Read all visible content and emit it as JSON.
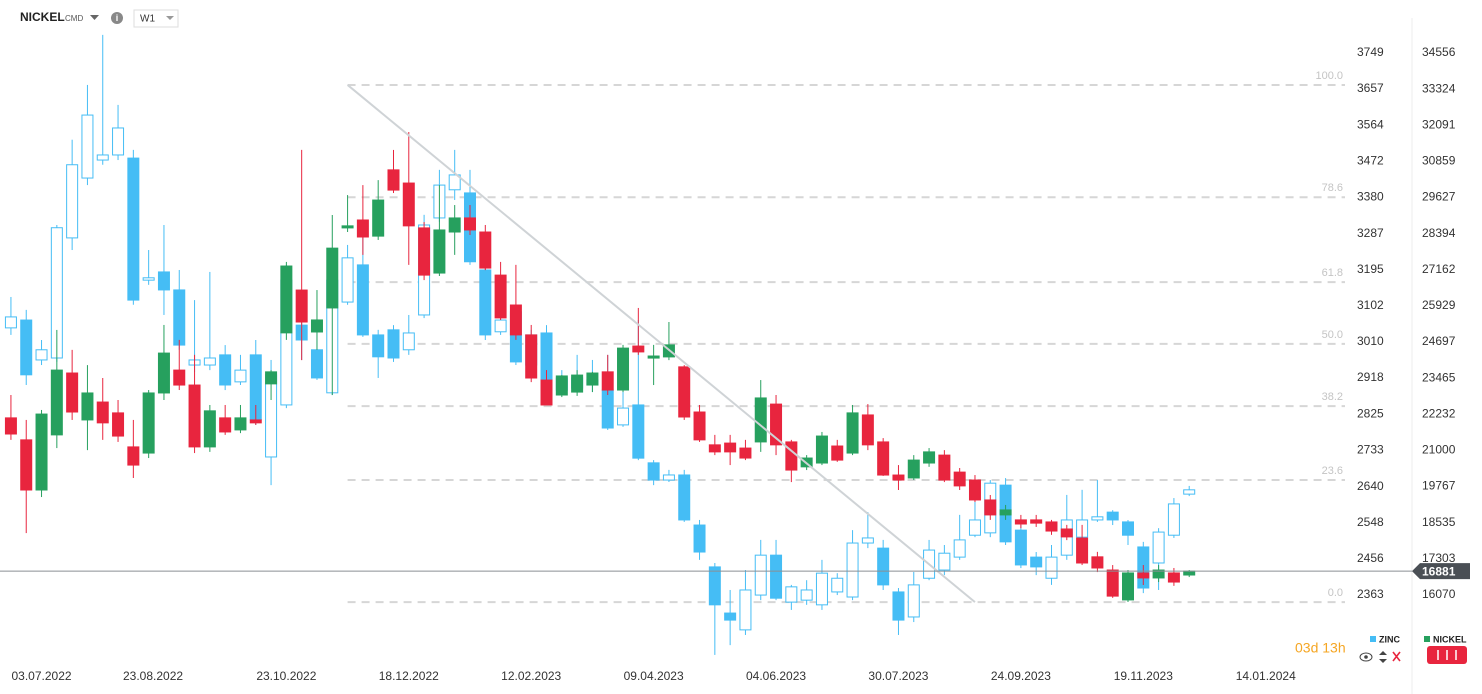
{
  "chart_data": {
    "type": "candlestick",
    "symbol": "NICKEL",
    "symbol_tag": "CMD",
    "interval": "W1",
    "countdown": "03d 13h",
    "x": [
      "19.06.2022",
      "26.06.2022",
      "03.07.2022",
      "10.07.2022",
      "17.07.2022",
      "24.07.2022",
      "31.07.2022",
      "07.08.2022",
      "14.08.2022",
      "21.08.2022",
      "28.08.2022",
      "04.09.2022",
      "11.09.2022",
      "18.09.2022",
      "25.09.2022",
      "02.10.2022",
      "09.10.2022",
      "16.10.2022",
      "23.10.2022",
      "30.10.2022",
      "06.11.2022",
      "13.11.2022",
      "20.11.2022",
      "27.11.2022",
      "04.12.2022",
      "11.12.2022",
      "18.12.2022",
      "25.12.2022",
      "01.01.2023",
      "08.01.2023",
      "15.01.2023",
      "22.01.2023",
      "29.01.2023",
      "05.02.2023",
      "12.02.2023",
      "19.02.2023",
      "26.02.2023",
      "05.03.2023",
      "12.03.2023",
      "19.03.2023",
      "26.03.2023",
      "02.04.2023",
      "09.04.2023",
      "16.04.2023",
      "23.04.2023",
      "30.04.2023",
      "07.05.2023",
      "14.05.2023",
      "21.05.2023",
      "28.05.2023",
      "04.06.2023",
      "11.06.2023",
      "18.06.2023",
      "25.06.2023",
      "02.07.2023",
      "09.07.2023",
      "16.07.2023",
      "23.07.2023",
      "30.07.2023",
      "06.08.2023",
      "13.08.2023",
      "20.08.2023",
      "27.08.2023",
      "03.09.2023",
      "10.09.2023",
      "17.09.2023",
      "24.09.2023",
      "01.10.2023",
      "08.10.2023",
      "15.10.2023",
      "22.10.2023",
      "29.10.2023",
      "05.11.2023",
      "12.11.2023",
      "19.11.2023",
      "26.11.2023",
      "03.12.2023",
      "10.12.2023"
    ],
    "xlim": [
      "14.06.2022",
      "20.03.2024"
    ],
    "xticks": [
      "03.07.2022",
      "23.08.2022",
      "23.10.2022",
      "18.12.2022",
      "12.02.2023",
      "09.04.2023",
      "04.06.2023",
      "30.07.2023",
      "24.09.2023",
      "19.11.2023",
      "14.01.2024"
    ],
    "ylim": [
      2197,
      3833
    ],
    "yticks": [
      3749,
      3657,
      3564,
      3472,
      3380,
      3287,
      3195,
      3102,
      3010,
      2918,
      2825,
      2733,
      2640,
      2548,
      2456,
      2363
    ],
    "y2lim": [
      13851,
      35682
    ],
    "y2ticks": [
      34556,
      33324,
      32091,
      30859,
      29627,
      28394,
      27162,
      25929,
      24697,
      23465,
      22232,
      21000,
      19767,
      18535,
      17303,
      16070
    ],
    "fib_levels": [
      "100.0",
      "78.6",
      "61.8",
      "50.0",
      "38.2",
      "23.6",
      "0.0"
    ],
    "fib_prices": [
      3667,
      3380,
      3163,
      3005,
      2846,
      2657,
      2345
    ],
    "trendline": {
      "x": [
        "20.11.2022",
        "03.09.2023"
      ],
      "values": [
        3667,
        2345
      ]
    },
    "series": [
      {
        "name": "ZINC",
        "axis": "y",
        "color": "#45bdf5",
        "up_color": "#ffffff",
        "open": [
          3046,
          3066,
          2964,
          2969,
          3276,
          3429,
          3475,
          3488,
          3480,
          3168,
          3189,
          3143,
          2951,
          2951,
          2977,
          2908,
          2977,
          2716,
          2849,
          3053,
          2990,
          2880,
          3112,
          3207,
          3028,
          3041,
          2990,
          3079,
          3327,
          3399,
          3391,
          3194,
          3036,
          3087,
          2951,
          3033,
          2918,
          2892,
          2900,
          2887,
          2798,
          2849,
          2701,
          2657,
          2670,
          2542,
          2435,
          2317,
          2274,
          2363,
          2465,
          2345,
          2350,
          2338,
          2371,
          2358,
          2496,
          2483,
          2371,
          2307,
          2406,
          2427,
          2460,
          2516,
          2522,
          2644,
          2529,
          2460,
          2406,
          2465,
          2511,
          2555,
          2575,
          2550,
          2486,
          2445,
          2516,
          2621
        ],
        "high": [
          3125,
          3092,
          3015,
          3309,
          3527,
          3667,
          3795,
          3616,
          3501,
          3245,
          3309,
          3194,
          3117,
          3189,
          3002,
          2977,
          3015,
          2964,
          3207,
          3117,
          3041,
          3220,
          3258,
          3296,
          3041,
          3053,
          3079,
          3335,
          3450,
          3501,
          3450,
          3207,
          3105,
          3105,
          3041,
          3053,
          2938,
          2977,
          2964,
          2977,
          2913,
          3066,
          2708,
          2683,
          2683,
          2555,
          2445,
          2376,
          2427,
          2504,
          2504,
          2389,
          2401,
          2453,
          2419,
          2529,
          2575,
          2504,
          2381,
          2422,
          2504,
          2491,
          2568,
          2606,
          2657,
          2662,
          2542,
          2473,
          2491,
          2619,
          2632,
          2657,
          2580,
          2555,
          2499,
          2534,
          2611,
          2642
        ],
        "low": [
          3028,
          2900,
          2951,
          2959,
          3245,
          3411,
          3463,
          3475,
          3105,
          3156,
          3079,
          2990,
          2933,
          2938,
          2887,
          2900,
          2798,
          2644,
          2841,
          2964,
          2913,
          2874,
          3105,
          3023,
          2918,
          2959,
          2977,
          3071,
          3317,
          3373,
          3207,
          3015,
          3028,
          2951,
          2938,
          2874,
          2882,
          2887,
          2882,
          2785,
          2793,
          2708,
          2644,
          2652,
          2550,
          2453,
          2210,
          2235,
          2261,
          2350,
          2350,
          2325,
          2338,
          2325,
          2363,
          2350,
          2483,
          2376,
          2261,
          2294,
          2401,
          2414,
          2453,
          2511,
          2511,
          2491,
          2432,
          2414,
          2389,
          2453,
          2504,
          2550,
          2542,
          2491,
          2368,
          2376,
          2509,
          2616
        ],
        "close": [
          3074,
          2926,
          2990,
          3302,
          3463,
          3590,
          3488,
          3557,
          3117,
          3174,
          3143,
          3002,
          2964,
          2969,
          2900,
          2938,
          2811,
          2926,
          3168,
          3015,
          2918,
          3168,
          3225,
          3028,
          2972,
          2969,
          3033,
          3309,
          3411,
          3437,
          3215,
          3028,
          3066,
          2959,
          3028,
          2887,
          2887,
          2918,
          2913,
          2790,
          2841,
          2713,
          2657,
          2670,
          2555,
          2473,
          2338,
          2299,
          2376,
          2465,
          2355,
          2384,
          2376,
          2419,
          2406,
          2496,
          2509,
          2389,
          2299,
          2389,
          2478,
          2470,
          2504,
          2555,
          2649,
          2499,
          2440,
          2435,
          2460,
          2555,
          2555,
          2563,
          2555,
          2516,
          2381,
          2524,
          2596,
          2632
        ]
      },
      {
        "name": "NICKEL",
        "axis": "y2",
        "color": "#e8253e",
        "up_color": "#26a05e",
        "open": [
          22110,
          21360,
          19650,
          21530,
          23640,
          22040,
          22650,
          22280,
          21120,
          20910,
          22960,
          23740,
          23230,
          21120,
          22110,
          21700,
          22040,
          23270,
          25010,
          26470,
          25040,
          25860,
          28590,
          28860,
          28310,
          30570,
          30120,
          28590,
          27050,
          28450,
          28930,
          28450,
          26980,
          25960,
          24940,
          23400,
          22890,
          22990,
          23230,
          23680,
          23060,
          24560,
          24150,
          24190,
          23850,
          22310,
          21190,
          21250,
          21080,
          21290,
          22580,
          21290,
          20440,
          20570,
          21150,
          20910,
          22210,
          21290,
          20160,
          20060,
          20570,
          20840,
          20260,
          19990,
          19310,
          18800,
          18630,
          18630,
          18560,
          18320,
          18010,
          17370,
          16920,
          15900,
          16820,
          16650,
          16820,
          16750
        ],
        "high": [
          22890,
          22040,
          22380,
          25110,
          24430,
          23910,
          23470,
          22720,
          22040,
          23060,
          25280,
          24770,
          24260,
          22550,
          22550,
          22550,
          22550,
          23740,
          27430,
          31250,
          26470,
          29030,
          29710,
          30050,
          30220,
          31250,
          31860,
          28790,
          30050,
          29370,
          29370,
          28690,
          27430,
          27330,
          25280,
          23740,
          23570,
          23740,
          23680,
          24260,
          24600,
          25860,
          24600,
          25380,
          23910,
          22550,
          21530,
          21530,
          21360,
          23400,
          22890,
          21360,
          20840,
          21630,
          21360,
          22550,
          22580,
          21420,
          20500,
          20840,
          21080,
          21010,
          20400,
          20160,
          19480,
          19140,
          18800,
          18800,
          18630,
          18460,
          18460,
          17540,
          17090,
          16920,
          17090,
          17090,
          16990,
          16920
        ],
        "low": [
          21360,
          18180,
          19410,
          21080,
          22040,
          21010,
          21360,
          21290,
          20060,
          20740,
          22720,
          23060,
          20910,
          20950,
          21530,
          21590,
          21870,
          22720,
          24770,
          24080,
          24430,
          22890,
          28450,
          27670,
          28180,
          29780,
          27330,
          26810,
          26950,
          27670,
          28350,
          27150,
          25450,
          24770,
          23330,
          22550,
          22820,
          22860,
          22990,
          22890,
          22990,
          24260,
          23230,
          24080,
          22040,
          21290,
          20840,
          20500,
          20670,
          20950,
          20840,
          19920,
          20330,
          20500,
          20610,
          20840,
          21010,
          20130,
          19650,
          19990,
          20440,
          19920,
          19650,
          19240,
          18630,
          18630,
          18350,
          18390,
          18120,
          17940,
          17090,
          16850,
          15970,
          15830,
          16410,
          16510,
          16380,
          16680
        ],
        "close": [
          21560,
          19650,
          22240,
          23740,
          22310,
          22960,
          21940,
          21490,
          20500,
          22960,
          24320,
          23230,
          21120,
          22350,
          21630,
          22110,
          21940,
          23680,
          27290,
          25380,
          25450,
          27900,
          28660,
          28280,
          29540,
          29880,
          28660,
          26980,
          28520,
          28930,
          28520,
          27220,
          25520,
          24940,
          23470,
          22550,
          23540,
          23570,
          23640,
          23060,
          24490,
          24360,
          24220,
          24600,
          22140,
          21360,
          20950,
          20950,
          20740,
          22790,
          21190,
          20330,
          20740,
          21490,
          20670,
          22280,
          21190,
          20160,
          19990,
          20670,
          20950,
          19990,
          19790,
          19310,
          18800,
          18970,
          18490,
          18520,
          18250,
          18050,
          17160,
          16990,
          16030,
          16820,
          16650,
          16920,
          16510,
          16881
        ]
      }
    ]
  }
}
